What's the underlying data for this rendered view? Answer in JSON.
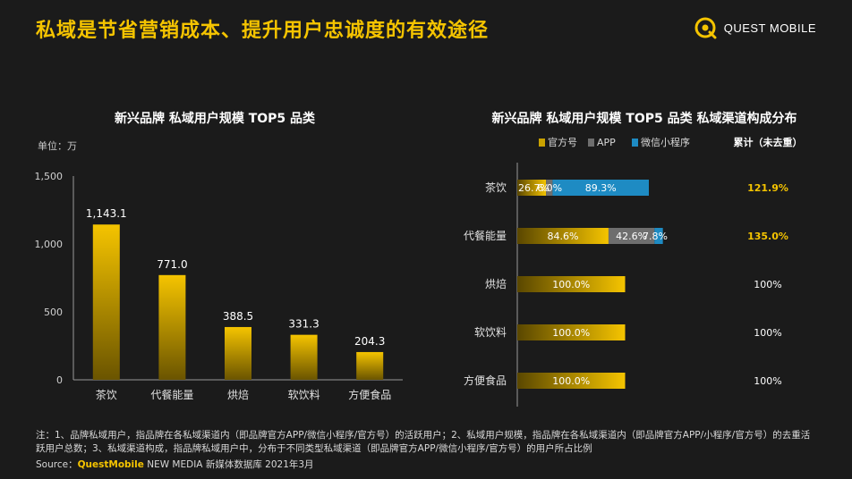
{
  "page": {
    "title": "私域是节省营销成本、提升用户忠诚度的有效途径",
    "logo_text": "QUEST MOBILE"
  },
  "colors": {
    "accent": "#f5c400",
    "gray_series": "#6e6e6e",
    "blue_series": "#1e8bc3",
    "background": "#1b1b1b"
  },
  "chart_data": [
    {
      "type": "bar",
      "title": "新兴品牌 私域用户规模 TOP5 品类",
      "unit_label": "单位：万",
      "categories": [
        "茶饮",
        "代餐能量",
        "烘焙",
        "软饮料",
        "方便食品"
      ],
      "values": [
        1143.1,
        771.0,
        388.5,
        331.3,
        204.3
      ],
      "value_labels": [
        "1,143.1",
        "771.0",
        "388.5",
        "331.3",
        "204.3"
      ],
      "yticks": [
        "0",
        "500",
        "1,000",
        "1,500"
      ],
      "ylim": [
        0,
        1500
      ]
    },
    {
      "type": "bar",
      "orientation": "horizontal-stacked",
      "title": "新兴品牌 私域用户规模 TOP5 品类 私域渠道构成分布",
      "categories": [
        "茶饮",
        "代餐能量",
        "烘焙",
        "软饮料",
        "方便食品"
      ],
      "series": [
        {
          "name": "官方号",
          "values": [
            26.7,
            84.6,
            100.0,
            100.0,
            100.0
          ],
          "labels": [
            "26.7%",
            "84.6%",
            "100.0%",
            "100.0%",
            "100.0%"
          ]
        },
        {
          "name": "APP",
          "values": [
            6.0,
            42.6,
            0,
            0,
            0
          ],
          "labels": [
            "6.0%",
            "42.6%",
            "",
            "",
            ""
          ]
        },
        {
          "name": "微信小程序",
          "values": [
            89.3,
            7.8,
            0,
            0,
            0
          ],
          "labels": [
            "89.3%",
            "7.8%",
            "",
            "",
            ""
          ]
        }
      ],
      "totals_header": "累计（未去重）",
      "totals": [
        "121.9%",
        "135.0%",
        "100%",
        "100%",
        "100%"
      ],
      "xlim": [
        0,
        135
      ]
    }
  ],
  "footnote": "注：1、品牌私域用户，指品牌在各私域渠道内（即品牌官方APP/微信小程序/官方号）的活跃用户；2、私域用户规模，指品牌在各私域渠道内（即品牌官方APP/小程序/官方号）的去重活跃用户总数；3、私域渠道构成，指品牌私域用户中，分布于不同类型私域渠道（即品牌官方APP/微信小程序/官方号）的用户所占比例",
  "source": {
    "prefix": "Source：",
    "brand": "QuestMobile",
    "rest": " NEW MEDIA 新媒体数据库 2021年3月"
  }
}
